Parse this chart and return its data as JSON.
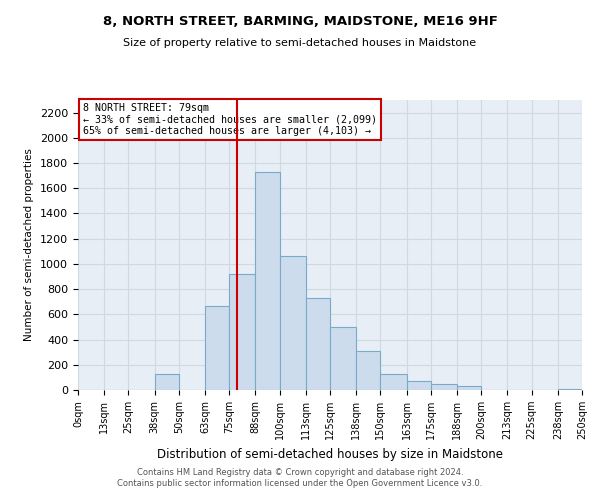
{
  "title": "8, NORTH STREET, BARMING, MAIDSTONE, ME16 9HF",
  "subtitle": "Size of property relative to semi-detached houses in Maidstone",
  "xlabel": "Distribution of semi-detached houses by size in Maidstone",
  "ylabel": "Number of semi-detached properties",
  "bar_color": "#ccdcec",
  "bar_edge_color": "#7aaaca",
  "facecolor": "#e8eef5",
  "grid_color": "#d0d8e0",
  "property_value": 79,
  "property_line_color": "#cc0000",
  "annotation_title": "8 NORTH STREET: 79sqm",
  "annotation_line1": "← 33% of semi-detached houses are smaller (2,099)",
  "annotation_line2": "65% of semi-detached houses are larger (4,103) →",
  "footer1": "Contains HM Land Registry data © Crown copyright and database right 2024.",
  "footer2": "Contains public sector information licensed under the Open Government Licence v3.0.",
  "bins": [
    0,
    13,
    25,
    38,
    50,
    63,
    75,
    88,
    100,
    113,
    125,
    138,
    150,
    163,
    175,
    188,
    200,
    213,
    225,
    238,
    250
  ],
  "bin_labels": [
    "0sqm",
    "13sqm",
    "25sqm",
    "38sqm",
    "50sqm",
    "63sqm",
    "75sqm",
    "88sqm",
    "100sqm",
    "113sqm",
    "125sqm",
    "138sqm",
    "150sqm",
    "163sqm",
    "175sqm",
    "188sqm",
    "200sqm",
    "213sqm",
    "225sqm",
    "238sqm",
    "250sqm"
  ],
  "counts": [
    0,
    0,
    0,
    125,
    0,
    670,
    920,
    1730,
    1060,
    730,
    500,
    310,
    125,
    70,
    50,
    35,
    0,
    0,
    0,
    10
  ],
  "ylim": [
    0,
    2300
  ],
  "yticks": [
    0,
    200,
    400,
    600,
    800,
    1000,
    1200,
    1400,
    1600,
    1800,
    2000,
    2200
  ]
}
